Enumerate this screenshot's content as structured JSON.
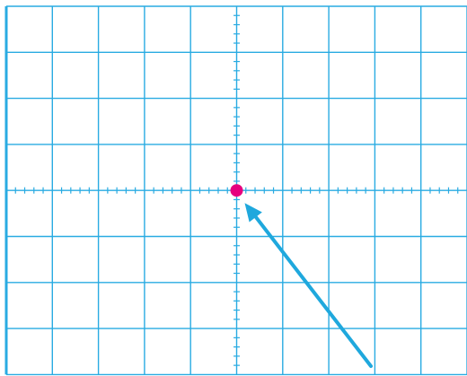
{
  "colors": {
    "grid": "#29abe2",
    "dot": "#e6007e",
    "arrow": "#1fa8dd",
    "background": "#ffffff"
  },
  "screen": {
    "divisions_x": 10,
    "divisions_y": 8,
    "subdivisions": 5
  },
  "spot": {
    "x_div": 0,
    "y_div": 0
  },
  "pointer": {
    "icon": "arrow-icon"
  }
}
